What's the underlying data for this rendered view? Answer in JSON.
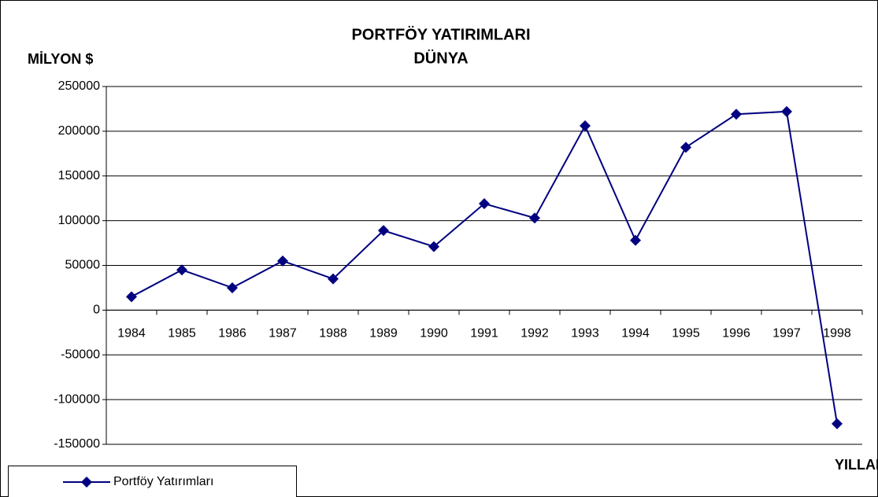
{
  "chart_data": {
    "type": "line",
    "title": "PORTFÖY YATIRIMLARI",
    "subtitle": "DÜNYA",
    "y_label": "MİLYON $",
    "x_label": "YILLAR",
    "categories": [
      "1984",
      "1985",
      "1986",
      "1987",
      "1988",
      "1989",
      "1990",
      "1991",
      "1992",
      "1993",
      "1994",
      "1995",
      "1996",
      "1997",
      "1998"
    ],
    "series": [
      {
        "name": "Portföy Yatırımları",
        "color": "#000080",
        "values": [
          15000,
          45000,
          25000,
          55000,
          35000,
          89000,
          71000,
          119000,
          103000,
          206000,
          78000,
          182000,
          219000,
          222000,
          -127000
        ]
      }
    ],
    "ylim": [
      -150000,
      250000
    ],
    "yticks": [
      -150000,
      -100000,
      -50000,
      0,
      50000,
      100000,
      150000,
      200000,
      250000
    ],
    "grid": true,
    "legend": "bottom-left"
  }
}
